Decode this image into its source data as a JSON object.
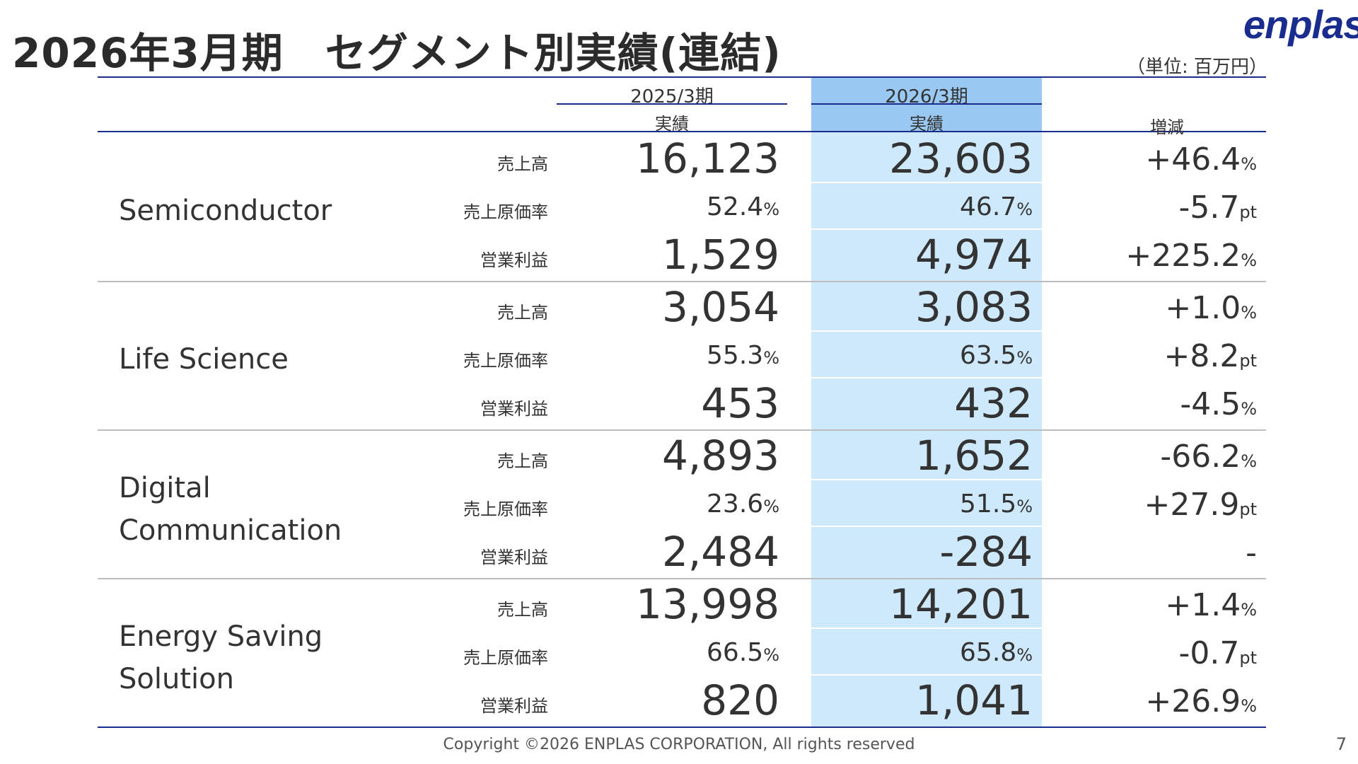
{
  "title": "2026年3月期　セグメント別実績(連結)",
  "logo": "enplas",
  "unit": "（単位: 百万円）",
  "columns": {
    "prev_period": "2025/3期",
    "prev_sub": "実績",
    "curr_period": "2026/3期",
    "curr_sub": "実績",
    "change": "増減"
  },
  "metrics": [
    "売上高",
    "売上原価率",
    "営業利益"
  ],
  "segments": [
    {
      "name": "Semiconductor",
      "rows": [
        {
          "prev": "16,123",
          "prev_suf": "",
          "curr": "23,603",
          "curr_suf": "",
          "chg": "+46.4",
          "chg_suf": "%"
        },
        {
          "prev": "52.4",
          "prev_suf": "%",
          "curr": "46.7",
          "curr_suf": "%",
          "chg": "-5.7",
          "chg_suf": "pt"
        },
        {
          "prev": "1,529",
          "prev_suf": "",
          "curr": "4,974",
          "curr_suf": "",
          "chg": "+225.2",
          "chg_suf": "%"
        }
      ]
    },
    {
      "name": "Life Science",
      "rows": [
        {
          "prev": "3,054",
          "prev_suf": "",
          "curr": "3,083",
          "curr_suf": "",
          "chg": "+1.0",
          "chg_suf": "%"
        },
        {
          "prev": "55.3",
          "prev_suf": "%",
          "curr": "63.5",
          "curr_suf": "%",
          "chg": "+8.2",
          "chg_suf": "pt"
        },
        {
          "prev": "453",
          "prev_suf": "",
          "curr": "432",
          "curr_suf": "",
          "chg": "-4.5",
          "chg_suf": "%"
        }
      ]
    },
    {
      "name": "Digital\nCommunication",
      "rows": [
        {
          "prev": "4,893",
          "prev_suf": "",
          "curr": "1,652",
          "curr_suf": "",
          "chg": "-66.2",
          "chg_suf": "%"
        },
        {
          "prev": "23.6",
          "prev_suf": "%",
          "curr": "51.5",
          "curr_suf": "%",
          "chg": "+27.9",
          "chg_suf": "pt"
        },
        {
          "prev": "2,484",
          "prev_suf": "",
          "curr": "-284",
          "curr_suf": "",
          "chg": "-",
          "chg_suf": ""
        }
      ]
    },
    {
      "name": "Energy Saving\nSolution",
      "rows": [
        {
          "prev": "13,998",
          "prev_suf": "",
          "curr": "14,201",
          "curr_suf": "",
          "chg": "+1.4",
          "chg_suf": "%"
        },
        {
          "prev": "66.5",
          "prev_suf": "%",
          "curr": "65.8",
          "curr_suf": "%",
          "chg": "-0.7",
          "chg_suf": "pt"
        },
        {
          "prev": "820",
          "prev_suf": "",
          "curr": "1,041",
          "curr_suf": "",
          "chg": "+26.9",
          "chg_suf": "%"
        }
      ]
    }
  ],
  "footer": "Copyright ©2026 ENPLAS CORPORATION, All rights reserved",
  "page_number": "7",
  "colors": {
    "navy": "#1a2d8f",
    "highlight_header": "#99c8f3",
    "highlight_body": "#cde9fb"
  }
}
